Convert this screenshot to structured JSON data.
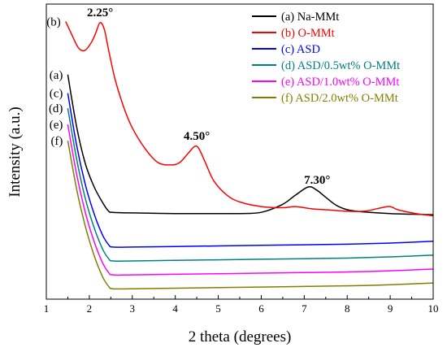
{
  "chart_data": {
    "type": "line",
    "xlabel": "2 theta (degrees)",
    "ylabel": "Intensity (a.u.)",
    "xlim": [
      1,
      10
    ],
    "xticks": [
      1,
      2,
      3,
      4,
      5,
      6,
      7,
      8,
      9,
      10
    ],
    "y_tick_labels": false,
    "grid": false,
    "legend_position": "top-right",
    "annotations": [
      {
        "text": "2.25°",
        "x": 2.25,
        "series": 1
      },
      {
        "text": "4.50°",
        "x": 4.5,
        "series": 1
      },
      {
        "text": "7.30°",
        "x": 7.3,
        "series": 0
      }
    ],
    "series": [
      {
        "name": "(a) Na-MMt",
        "label": "(a)",
        "color": "#000000",
        "points": [
          [
            1.5,
            1.64
          ],
          [
            1.7,
            1.2
          ],
          [
            1.9,
            0.88
          ],
          [
            2.1,
            0.68
          ],
          [
            2.3,
            0.54
          ],
          [
            2.45,
            0.46
          ],
          [
            2.55,
            0.45
          ],
          [
            3,
            0.445
          ],
          [
            4,
            0.44
          ],
          [
            5,
            0.44
          ],
          [
            5.5,
            0.44
          ],
          [
            6,
            0.45
          ],
          [
            6.5,
            0.52
          ],
          [
            6.8,
            0.6
          ],
          [
            7.1,
            0.67
          ],
          [
            7.3,
            0.64
          ],
          [
            7.5,
            0.58
          ],
          [
            7.8,
            0.5
          ],
          [
            8.2,
            0.46
          ],
          [
            9,
            0.44
          ],
          [
            10,
            0.43
          ]
        ]
      },
      {
        "name": "(b) O-MMt",
        "label": "(b)",
        "color": "#ff0000",
        "points": [
          [
            1.45,
            2.1
          ],
          [
            1.6,
            1.98
          ],
          [
            1.75,
            1.87
          ],
          [
            1.9,
            1.85
          ],
          [
            2.05,
            1.92
          ],
          [
            2.15,
            2.0
          ],
          [
            2.25,
            2.09
          ],
          [
            2.35,
            2.03
          ],
          [
            2.45,
            1.85
          ],
          [
            2.6,
            1.6
          ],
          [
            2.8,
            1.36
          ],
          [
            3.0,
            1.18
          ],
          [
            3.3,
            1.0
          ],
          [
            3.6,
            0.88
          ],
          [
            3.9,
            0.86
          ],
          [
            4.1,
            0.88
          ],
          [
            4.3,
            0.96
          ],
          [
            4.45,
            1.02
          ],
          [
            4.55,
            1.0
          ],
          [
            4.7,
            0.88
          ],
          [
            4.9,
            0.72
          ],
          [
            5.2,
            0.6
          ],
          [
            5.5,
            0.54
          ],
          [
            6.0,
            0.5
          ],
          [
            6.5,
            0.49
          ],
          [
            6.8,
            0.5
          ],
          [
            7.2,
            0.48
          ],
          [
            7.6,
            0.47
          ],
          [
            8.0,
            0.46
          ],
          [
            8.4,
            0.46
          ],
          [
            8.8,
            0.49
          ],
          [
            9.0,
            0.5
          ],
          [
            9.2,
            0.47
          ],
          [
            9.6,
            0.44
          ],
          [
            10,
            0.42
          ]
        ]
      },
      {
        "name": "(c) ASD",
        "label": "(c)",
        "color": "#0000ff",
        "points": [
          [
            1.5,
            1.48
          ],
          [
            1.7,
            1.04
          ],
          [
            1.9,
            0.7
          ],
          [
            2.1,
            0.45
          ],
          [
            2.3,
            0.26
          ],
          [
            2.45,
            0.17
          ],
          [
            2.55,
            0.15
          ],
          [
            3,
            0.15
          ],
          [
            4,
            0.155
          ],
          [
            5,
            0.16
          ],
          [
            6,
            0.165
          ],
          [
            7,
            0.17
          ],
          [
            8,
            0.175
          ],
          [
            9,
            0.185
          ],
          [
            10,
            0.2
          ]
        ]
      },
      {
        "name": "(d) ASD/0.5wt% O-MMt",
        "label": "(d)",
        "color": "#008080",
        "points": [
          [
            1.5,
            1.35
          ],
          [
            1.7,
            0.92
          ],
          [
            1.9,
            0.58
          ],
          [
            2.1,
            0.33
          ],
          [
            2.3,
            0.14
          ],
          [
            2.45,
            0.05
          ],
          [
            2.55,
            0.03
          ],
          [
            3,
            0.03
          ],
          [
            4,
            0.035
          ],
          [
            5,
            0.04
          ],
          [
            6,
            0.045
          ],
          [
            7,
            0.05
          ],
          [
            8,
            0.055
          ],
          [
            9,
            0.065
          ],
          [
            10,
            0.08
          ]
        ]
      },
      {
        "name": "(e) ASD/1.0wt% O-MMt",
        "label": "(e)",
        "color": "#ff00ff",
        "points": [
          [
            1.5,
            1.21
          ],
          [
            1.7,
            0.79
          ],
          [
            1.9,
            0.46
          ],
          [
            2.1,
            0.21
          ],
          [
            2.3,
            0.02
          ],
          [
            2.45,
            -0.07
          ],
          [
            2.55,
            -0.09
          ],
          [
            3,
            -0.09
          ],
          [
            4,
            -0.085
          ],
          [
            5,
            -0.08
          ],
          [
            6,
            -0.075
          ],
          [
            7,
            -0.07
          ],
          [
            8,
            -0.065
          ],
          [
            9,
            -0.055
          ],
          [
            10,
            -0.04
          ]
        ]
      },
      {
        "name": "(f) ASD/2.0wt% O-MMt",
        "label": "(f)",
        "color": "#808000",
        "points": [
          [
            1.5,
            1.07
          ],
          [
            1.7,
            0.66
          ],
          [
            1.9,
            0.34
          ],
          [
            2.1,
            0.09
          ],
          [
            2.3,
            -0.1
          ],
          [
            2.45,
            -0.19
          ],
          [
            2.55,
            -0.21
          ],
          [
            3,
            -0.21
          ],
          [
            4,
            -0.205
          ],
          [
            5,
            -0.2
          ],
          [
            6,
            -0.195
          ],
          [
            7,
            -0.19
          ],
          [
            8,
            -0.185
          ],
          [
            9,
            -0.175
          ],
          [
            10,
            -0.16
          ]
        ]
      }
    ]
  }
}
